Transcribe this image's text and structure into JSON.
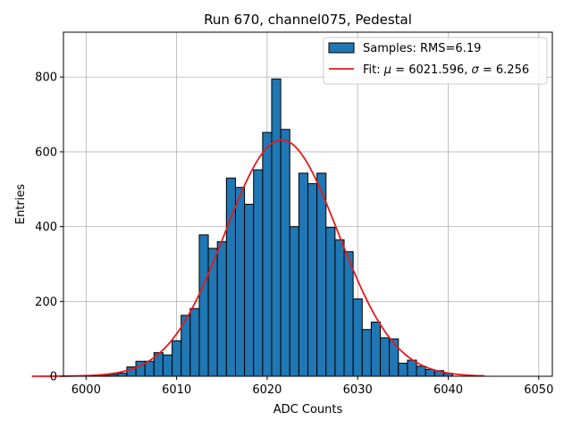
{
  "chart_data": {
    "type": "bar",
    "title": "Run 670, channel075, Pedestal",
    "xlabel": "ADC Counts",
    "ylabel": "Entries",
    "xlim": [
      5997.5,
      6051.5
    ],
    "ylim": [
      0,
      920
    ],
    "xticks": [
      6000,
      6010,
      6020,
      6030,
      6040,
      6050
    ],
    "yticks": [
      0,
      200,
      400,
      600,
      800
    ],
    "grid": true,
    "legend_position": "top-right",
    "bin_width": 1,
    "bins": {
      "x": [
        6001,
        6002,
        6003,
        6004,
        6005,
        6006,
        6007,
        6008,
        6009,
        6010,
        6011,
        6012,
        6013,
        6014,
        6015,
        6016,
        6017,
        6018,
        6019,
        6020,
        6021,
        6022,
        6023,
        6024,
        6025,
        6026,
        6027,
        6028,
        6029,
        6030,
        6031,
        6032,
        6033,
        6034,
        6035,
        6036,
        6037,
        6038,
        6039,
        6040
      ],
      "values": [
        1,
        2,
        5,
        8,
        25,
        40,
        40,
        63,
        57,
        95,
        163,
        181,
        378,
        342,
        360,
        530,
        505,
        460,
        552,
        652,
        795,
        660,
        400,
        543,
        515,
        543,
        398,
        365,
        333,
        207,
        125,
        145,
        103,
        100,
        35,
        43,
        27,
        18,
        15,
        8
      ]
    },
    "fit": {
      "mu": 6021.596,
      "sigma": 6.256,
      "amplitude": 632,
      "x_range": [
        5994,
        6044
      ]
    },
    "series": [
      {
        "name": "Samples: RMS=6.19",
        "type": "histogram",
        "color": "#1f77b4",
        "edgecolor": "#000000"
      },
      {
        "name_prefix": "Fit: ",
        "name_mu": "μ",
        "name_mid": " = 6021.596, ",
        "name_sigma": "σ",
        "name_suffix": " = 6.256",
        "type": "line",
        "color": "#e41a1c"
      }
    ]
  }
}
